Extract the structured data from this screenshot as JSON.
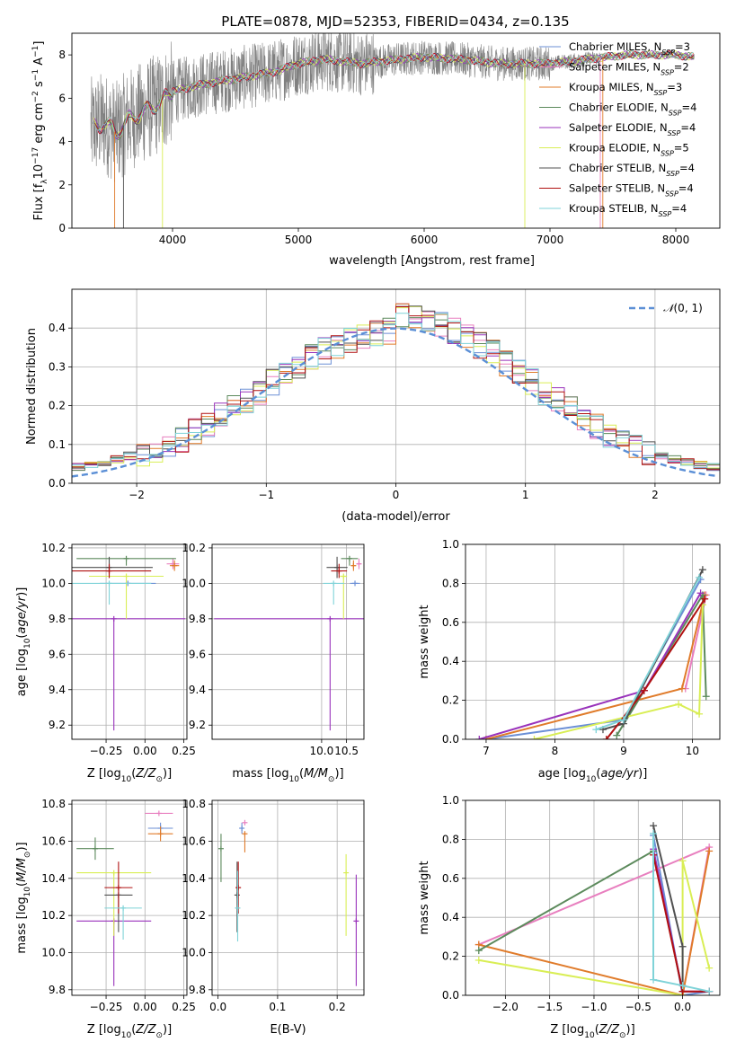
{
  "figure": {
    "title": "PLATE=0878, MJD=52353, FIBERID=0434, z=0.135"
  },
  "colors": {
    "Chabrier MILES": "#6b8fd6",
    "Salpeter MILES": "#e87fbf",
    "Kroupa MILES": "#e07b2a",
    "Chabrier ELODIE": "#5c8a5c",
    "Salpeter ELODIE": "#9933bb",
    "Kroupa ELODIE": "#d9ee55",
    "Chabrier STELIB": "#505050",
    "Salpeter STELIB": "#b01010",
    "Kroupa STELIB": "#7fd3d8",
    "spectrum": "#808080",
    "normal": "#5b8fd6"
  },
  "chart_data": [
    {
      "id": "spectrum",
      "type": "line",
      "xlabel": "wavelength [Angstrom, rest frame]",
      "ylabel": "Flux [f_λ 10^-17 erg cm^-2 s^-1 A^-1]",
      "ylabel_parts": {
        "base": "Flux [f",
        "sub1": "λ",
        "mid": "10",
        "sup1": "−17",
        "mid2": " erg cm",
        "sup2": "−2",
        "mid3": " s",
        "sup3": "−1",
        "mid4": " A",
        "sup4": "−1",
        "end": "]"
      },
      "xlim": [
        3200,
        8350
      ],
      "ylim": [
        0,
        9
      ],
      "xticks": [
        4000,
        5000,
        6000,
        7000,
        8000
      ],
      "yticks": [
        0,
        2,
        4,
        6,
        8
      ],
      "data_range": [
        3350,
        8150
      ],
      "legend_position": "right",
      "legend": [
        {
          "name": "Chabrier MILES",
          "nssp": "3"
        },
        {
          "name": "Salpeter MILES",
          "nssp": "2"
        },
        {
          "name": "Kroupa MILES",
          "nssp": "3"
        },
        {
          "name": "Chabrier ELODIE",
          "nssp": "4"
        },
        {
          "name": "Salpeter ELODIE",
          "nssp": "4"
        },
        {
          "name": "Kroupa ELODIE",
          "nssp": "5"
        },
        {
          "name": "Chabrier STELIB",
          "nssp": "4"
        },
        {
          "name": "Salpeter STELIB",
          "nssp": "4"
        },
        {
          "name": "Kroupa STELIB",
          "nssp": "4"
        }
      ],
      "legend_sub": "SSP",
      "legend_prefix": "N",
      "continuum_points": [
        [
          3350,
          4.6
        ],
        [
          3450,
          4.9
        ],
        [
          3550,
          4.4
        ],
        [
          3650,
          5.0
        ],
        [
          3750,
          5.3
        ],
        [
          3900,
          5.8
        ],
        [
          4000,
          6.3
        ],
        [
          4200,
          6.6
        ],
        [
          4500,
          6.9
        ],
        [
          4800,
          7.2
        ],
        [
          5000,
          7.6
        ],
        [
          5200,
          7.8
        ],
        [
          5500,
          7.6
        ],
        [
          5800,
          7.8
        ],
        [
          6000,
          7.9
        ],
        [
          6300,
          7.8
        ],
        [
          6600,
          7.6
        ],
        [
          7000,
          7.6
        ],
        [
          7300,
          7.8
        ],
        [
          7600,
          8.0
        ],
        [
          8000,
          8.0
        ],
        [
          8150,
          7.9
        ]
      ]
    },
    {
      "id": "residuals",
      "type": "histogram",
      "xlabel": "(data-model)/error",
      "ylabel": "Normed distribution",
      "xlim": [
        -2.5,
        2.5
      ],
      "ylim": [
        0,
        0.5
      ],
      "xticks": [
        -2,
        -1,
        0,
        1,
        2
      ],
      "xtick_labels": [
        "−2",
        "−1",
        "0",
        "1",
        "2"
      ],
      "yticks": [
        0.0,
        0.1,
        0.2,
        0.3,
        0.4
      ],
      "ytick_labels": [
        "0.0",
        "0.1",
        "0.2",
        "0.3",
        "0.4"
      ],
      "bin_width": 0.1,
      "legend": "N(0, 1)",
      "legend_position": "top-right"
    },
    {
      "id": "age-vs-Z",
      "type": "scatter",
      "xlabel": "Z [log10(Z/Z⊙)]",
      "ylabel": "age [log10(age/yr)]",
      "xlim": [
        -0.47,
        0.27
      ],
      "ylim": [
        9.12,
        10.22
      ],
      "xticks": [
        -0.25,
        0.0,
        0.25
      ],
      "xtick_labels": [
        "−0.25",
        "0.00",
        "0.25"
      ],
      "yticks": [
        9.2,
        9.4,
        9.6,
        9.8,
        10.0,
        10.2
      ],
      "ytick_labels": [
        "9.2",
        "9.4",
        "9.6",
        "9.8",
        "10.0",
        "10.2"
      ],
      "points": [
        {
          "model": "Chabrier MILES",
          "x": -0.11,
          "xerr": 0.18,
          "y": 10.0,
          "yerr": [
            0.0,
            0.0
          ]
        },
        {
          "model": "Salpeter MILES",
          "x": 0.18,
          "xerr": 0.04,
          "y": 10.11,
          "yerr": [
            0.03,
            0.03
          ]
        },
        {
          "model": "Kroupa MILES",
          "x": 0.19,
          "xerr": 0.03,
          "y": 10.1,
          "yerr": [
            0.03,
            0.03
          ]
        },
        {
          "model": "Chabrier ELODIE",
          "x": -0.12,
          "xerr": 0.32,
          "y": 10.14,
          "yerr": [
            0.04,
            0.0
          ]
        },
        {
          "model": "Salpeter ELODIE",
          "x": -0.2,
          "xerr": 0.46,
          "y": 9.8,
          "yerr": [
            0.63,
            0.0
          ]
        },
        {
          "model": "Kroupa ELODIE",
          "x": -0.12,
          "xerr": 0.24,
          "y": 10.04,
          "yerr": [
            0.24,
            0.0
          ]
        },
        {
          "model": "Chabrier STELIB",
          "x": -0.23,
          "xerr": 0.28,
          "y": 10.09,
          "yerr": [
            0.06,
            0.06
          ]
        },
        {
          "model": "Salpeter STELIB",
          "x": -0.23,
          "xerr": 0.27,
          "y": 10.07,
          "yerr": [
            0.04,
            0.04
          ]
        },
        {
          "model": "Kroupa STELIB",
          "x": -0.23,
          "xerr": 0.27,
          "y": 10.0,
          "yerr": [
            0.12,
            0.0
          ]
        }
      ]
    },
    {
      "id": "age-vs-mass",
      "type": "scatter",
      "xlabel": "mass [log10(M/M⊙)]",
      "xlim": [
        7.8,
        10.85
      ],
      "ylim": [
        9.12,
        10.22
      ],
      "xticks": [
        10.0,
        10.5
      ],
      "xtick_labels": [
        "10.0",
        "10.5"
      ],
      "yticks": [
        9.2,
        9.4,
        9.6,
        9.8,
        10.0,
        10.2
      ],
      "ytick_labels": [
        "9.2",
        "9.4",
        "9.6",
        "9.8",
        "10.0",
        "10.2"
      ],
      "points": [
        {
          "model": "Chabrier MILES",
          "x": 10.67,
          "xerr": 0.1,
          "y": 10.0,
          "yerr": [
            0.0,
            0.0
          ]
        },
        {
          "model": "Salpeter MILES",
          "x": 10.75,
          "xerr": 0.04,
          "y": 10.11,
          "yerr": [
            0.03,
            0.03
          ]
        },
        {
          "model": "Kroupa MILES",
          "x": 10.64,
          "xerr": 0.04,
          "y": 10.1,
          "yerr": [
            0.03,
            0.03
          ]
        },
        {
          "model": "Chabrier ELODIE",
          "x": 10.56,
          "xerr": 0.17,
          "y": 10.14,
          "yerr": [
            0.04,
            0.0
          ]
        },
        {
          "model": "Salpeter ELODIE",
          "x": 10.17,
          "xerr": 2.33,
          "y": 9.8,
          "yerr": [
            0.63,
            0.0
          ]
        },
        {
          "model": "Kroupa ELODIE",
          "x": 10.44,
          "xerr": 0.07,
          "y": 10.04,
          "yerr": [
            0.24,
            0.0
          ]
        },
        {
          "model": "Chabrier STELIB",
          "x": 10.31,
          "xerr": 0.21,
          "y": 10.09,
          "yerr": [
            0.06,
            0.06
          ]
        },
        {
          "model": "Salpeter STELIB",
          "x": 10.35,
          "xerr": 0.16,
          "y": 10.07,
          "yerr": [
            0.04,
            0.04
          ]
        },
        {
          "model": "Kroupa STELIB",
          "x": 10.24,
          "xerr": 0.21,
          "y": 10.0,
          "yerr": [
            0.12,
            0.0
          ]
        }
      ]
    },
    {
      "id": "weight-vs-age",
      "type": "line",
      "xlabel": "age [log10(age/yr)]",
      "ylabel": "mass weight",
      "xlim": [
        6.7,
        10.4
      ],
      "ylim": [
        0,
        1
      ],
      "xticks": [
        7,
        8,
        9,
        10
      ],
      "yticks": [
        0.0,
        0.2,
        0.4,
        0.6,
        0.8,
        1.0
      ],
      "ytick_labels": [
        "0.0",
        "0.2",
        "0.4",
        "0.6",
        "0.8",
        "1.0"
      ],
      "series": [
        {
          "model": "Chabrier MILES",
          "points": [
            [
              7.0,
              0.0
            ],
            [
              9.0,
              0.1
            ],
            [
              10.12,
              0.82
            ]
          ]
        },
        {
          "model": "Salpeter MILES",
          "points": [
            [
              9.9,
              0.26
            ],
            [
              10.2,
              0.74
            ]
          ]
        },
        {
          "model": "Kroupa MILES",
          "points": [
            [
              7.0,
              0.0
            ],
            [
              9.85,
              0.26
            ],
            [
              10.18,
              0.74
            ]
          ]
        },
        {
          "model": "Chabrier ELODIE",
          "points": [
            [
              8.9,
              0.02
            ],
            [
              10.15,
              0.74
            ],
            [
              10.2,
              0.22
            ]
          ]
        },
        {
          "model": "Salpeter ELODIE",
          "points": [
            [
              6.9,
              0.0
            ],
            [
              9.3,
              0.25
            ],
            [
              10.12,
              0.75
            ]
          ]
        },
        {
          "model": "Kroupa ELODIE",
          "points": [
            [
              7.7,
              0.0
            ],
            [
              9.8,
              0.18
            ],
            [
              10.1,
              0.13
            ],
            [
              10.15,
              0.69
            ]
          ]
        },
        {
          "model": "Chabrier STELIB",
          "points": [
            [
              8.7,
              0.05
            ],
            [
              9.0,
              0.08
            ],
            [
              10.15,
              0.87
            ]
          ]
        },
        {
          "model": "Salpeter STELIB",
          "points": [
            [
              8.75,
              0.0
            ],
            [
              9.3,
              0.25
            ],
            [
              10.18,
              0.72
            ]
          ]
        },
        {
          "model": "Kroupa STELIB",
          "points": [
            [
              8.6,
              0.05
            ],
            [
              9.0,
              0.1
            ],
            [
              10.1,
              0.83
            ]
          ]
        }
      ]
    },
    {
      "id": "mass-vs-Z",
      "type": "scatter",
      "xlabel": "Z [log10(Z/Z⊙)]",
      "ylabel": "mass [log10(M/M⊙)]",
      "xlim": [
        -0.47,
        0.27
      ],
      "ylim": [
        9.77,
        10.82
      ],
      "xticks": [
        -0.25,
        0.0,
        0.25
      ],
      "xtick_labels": [
        "−0.25",
        "0.00",
        "0.25"
      ],
      "yticks": [
        9.8,
        10.0,
        10.2,
        10.4,
        10.6,
        10.8
      ],
      "ytick_labels": [
        "9.8",
        "10.0",
        "10.2",
        "10.4",
        "10.6",
        "10.8"
      ],
      "points": [
        {
          "model": "Chabrier MILES",
          "x": 0.1,
          "xerr": 0.08,
          "y": 10.67,
          "yerr": [
            0.03,
            0.03
          ]
        },
        {
          "model": "Salpeter MILES",
          "x": 0.09,
          "xerr": 0.09,
          "y": 10.75,
          "yerr": [
            0.0,
            0.0
          ]
        },
        {
          "model": "Kroupa MILES",
          "x": 0.1,
          "xerr": 0.08,
          "y": 10.64,
          "yerr": [
            0.04,
            0.04
          ]
        },
        {
          "model": "Chabrier ELODIE",
          "x": -0.32,
          "xerr": 0.12,
          "y": 10.56,
          "yerr": [
            0.06,
            0.06
          ]
        },
        {
          "model": "Salpeter ELODIE",
          "x": -0.2,
          "xerr": 0.24,
          "y": 10.17,
          "yerr": [
            0.35,
            0.0
          ]
        },
        {
          "model": "Kroupa ELODIE",
          "x": -0.2,
          "xerr": 0.24,
          "y": 10.43,
          "yerr": [
            0.34,
            0.0
          ]
        },
        {
          "model": "Chabrier STELIB",
          "x": -0.17,
          "xerr": 0.09,
          "y": 10.31,
          "yerr": [
            0.2,
            0.0
          ]
        },
        {
          "model": "Salpeter STELIB",
          "x": -0.17,
          "xerr": 0.09,
          "y": 10.35,
          "yerr": [
            0.14,
            0.14
          ]
        },
        {
          "model": "Kroupa STELIB",
          "x": -0.14,
          "xerr": 0.12,
          "y": 10.24,
          "yerr": [
            0.17,
            0.0
          ]
        }
      ]
    },
    {
      "id": "mass-vs-EBV",
      "type": "scatter",
      "xlabel": "E(B-V)",
      "xlim": [
        -0.01,
        0.245
      ],
      "ylim": [
        9.77,
        10.82
      ],
      "xticks": [
        0.0,
        0.1,
        0.2
      ],
      "xtick_labels": [
        "0.0",
        "0.1",
        "0.2"
      ],
      "yticks": [
        9.8,
        10.0,
        10.2,
        10.4,
        10.6,
        10.8
      ],
      "ytick_labels": [
        "9.8",
        "10.0",
        "10.2",
        "10.4",
        "10.6",
        "10.8"
      ],
      "points": [
        {
          "model": "Chabrier MILES",
          "x": 0.04,
          "y": 10.67,
          "yerr": [
            0.03,
            0.03
          ]
        },
        {
          "model": "Salpeter MILES",
          "x": 0.045,
          "y": 10.7,
          "yerr": [
            0.0,
            0.0
          ]
        },
        {
          "model": "Kroupa MILES",
          "x": 0.045,
          "y": 10.64,
          "yerr": [
            0.1,
            0.0
          ]
        },
        {
          "model": "Chabrier ELODIE",
          "x": 0.005,
          "y": 10.56,
          "yerr": [
            0.18,
            0.08
          ]
        },
        {
          "model": "Salpeter ELODIE",
          "x": 0.232,
          "y": 10.17,
          "yerr": [
            0.35,
            0.25
          ]
        },
        {
          "model": "Kroupa ELODIE",
          "x": 0.215,
          "y": 10.43,
          "yerr": [
            0.34,
            0.1
          ]
        },
        {
          "model": "Chabrier STELIB",
          "x": 0.032,
          "y": 10.31,
          "yerr": [
            0.2,
            0.18
          ]
        },
        {
          "model": "Salpeter STELIB",
          "x": 0.034,
          "y": 10.35,
          "yerr": [
            0.14,
            0.14
          ]
        },
        {
          "model": "Kroupa STELIB",
          "x": 0.033,
          "y": 10.24,
          "yerr": [
            0.18,
            0.2
          ]
        }
      ]
    },
    {
      "id": "weight-vs-Z",
      "type": "line",
      "xlabel": "Z [log10(Z/Z⊙)]",
      "ylabel": "mass weight",
      "xlim": [
        -2.45,
        0.42
      ],
      "ylim": [
        0,
        1
      ],
      "xticks": [
        -2.0,
        -1.5,
        -1.0,
        -0.5,
        0.0
      ],
      "xtick_labels": [
        "−2.0",
        "−1.5",
        "−1.0",
        "−0.5",
        "0.0"
      ],
      "yticks": [
        0.0,
        0.2,
        0.4,
        0.6,
        0.8,
        1.0
      ],
      "ytick_labels": [
        "0.0",
        "0.2",
        "0.4",
        "0.6",
        "0.8",
        "1.0"
      ],
      "series": [
        {
          "model": "Chabrier MILES",
          "points": [
            [
              -0.33,
              0.82
            ],
            [
              0.0,
              0.0
            ],
            [
              0.3,
              0.02
            ]
          ]
        },
        {
          "model": "Salpeter MILES",
          "points": [
            [
              -2.3,
              0.26
            ],
            [
              0.3,
              0.76
            ],
            [
              0.0,
              0.0
            ]
          ]
        },
        {
          "model": "Kroupa MILES",
          "points": [
            [
              -2.3,
              0.26
            ],
            [
              0.0,
              0.0
            ],
            [
              0.3,
              0.74
            ]
          ]
        },
        {
          "model": "Chabrier ELODIE",
          "points": [
            [
              -2.3,
              0.23
            ],
            [
              -0.33,
              0.74
            ],
            [
              0.0,
              0.02
            ]
          ]
        },
        {
          "model": "Salpeter ELODIE",
          "points": [
            [
              -0.33,
              0.75
            ],
            [
              0.0,
              0.02
            ],
            [
              0.3,
              0.02
            ]
          ]
        },
        {
          "model": "Kroupa ELODIE",
          "points": [
            [
              -2.3,
              0.18
            ],
            [
              0.0,
              0.0
            ],
            [
              0.0,
              0.69
            ],
            [
              0.3,
              0.14
            ]
          ]
        },
        {
          "model": "Chabrier STELIB",
          "points": [
            [
              -0.33,
              0.87
            ],
            [
              0.0,
              0.25
            ],
            [
              0.0,
              0.05
            ]
          ]
        },
        {
          "model": "Salpeter STELIB",
          "points": [
            [
              -0.33,
              0.72
            ],
            [
              0.0,
              0.02
            ],
            [
              0.3,
              0.02
            ]
          ]
        },
        {
          "model": "Kroupa STELIB",
          "points": [
            [
              -0.33,
              0.83
            ],
            [
              -0.33,
              0.08
            ],
            [
              0.0,
              0.05
            ],
            [
              0.3,
              0.02
            ]
          ]
        }
      ]
    }
  ]
}
